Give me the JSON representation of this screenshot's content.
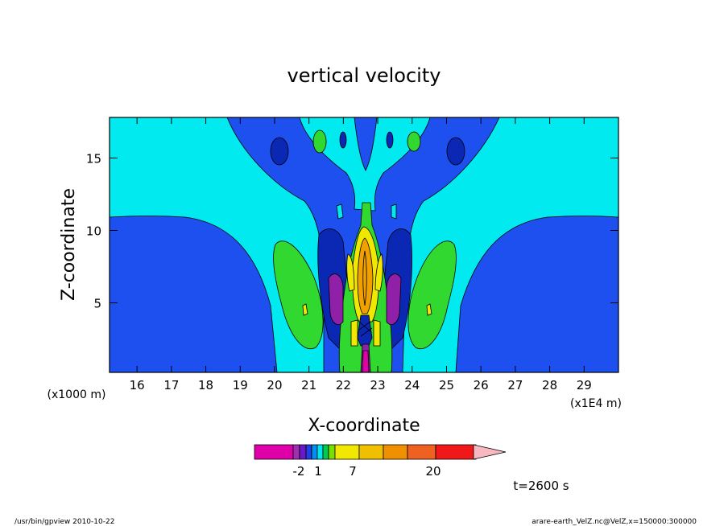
{
  "chart_data": {
    "type": "contour",
    "title": "vertical velocity",
    "xlabel": "X-coordinate",
    "ylabel": "Z-coordinate",
    "x_unit_left": "(x1000 m)",
    "x_unit_right": "(x1E4 m)",
    "xlim": [
      15.2,
      30.0
    ],
    "ylim": [
      0.2,
      17.8
    ],
    "x_ticks": [
      16,
      17,
      18,
      19,
      20,
      21,
      22,
      23,
      24,
      25,
      26,
      27,
      28,
      29
    ],
    "y_ticks": [
      5,
      10,
      15
    ],
    "colorbar": {
      "tick_labels": [
        "-2",
        "1",
        "7",
        "20"
      ],
      "colors": [
        "#e000a8",
        "#a030b0",
        "#6a18c8",
        "#2040e0",
        "#0090f0",
        "#00e6f0",
        "#00c850",
        "#78e000",
        "#f0e800",
        "#f0c000",
        "#f09000",
        "#f06020",
        "#f01818",
        "#f07878",
        "#f8b8c0"
      ]
    },
    "regions": [
      {
        "name": "background",
        "color": "#1e50f0"
      },
      {
        "name": "cyan-band",
        "color": "#00eaf0"
      },
      {
        "name": "navy-core",
        "color": "#0a28b4"
      },
      {
        "name": "green-lobe",
        "color": "#30d830"
      },
      {
        "name": "purple-core",
        "color": "#9020a8"
      },
      {
        "name": "yellow-core",
        "color": "#f0e800"
      },
      {
        "name": "orange-core",
        "color": "#f0a000"
      }
    ]
  },
  "annotations": {
    "time": "t=2600 s",
    "footer_left": "/usr/bin/gpview   2010-10-22",
    "footer_right": "arare-earth_VelZ.nc@VelZ,x=150000:300000"
  }
}
